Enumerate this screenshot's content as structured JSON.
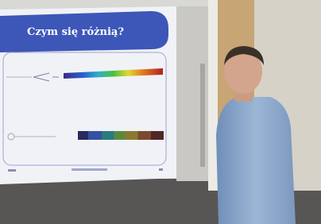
{
  "slide": {
    "title": "Czym się różnią?"
  }
}
